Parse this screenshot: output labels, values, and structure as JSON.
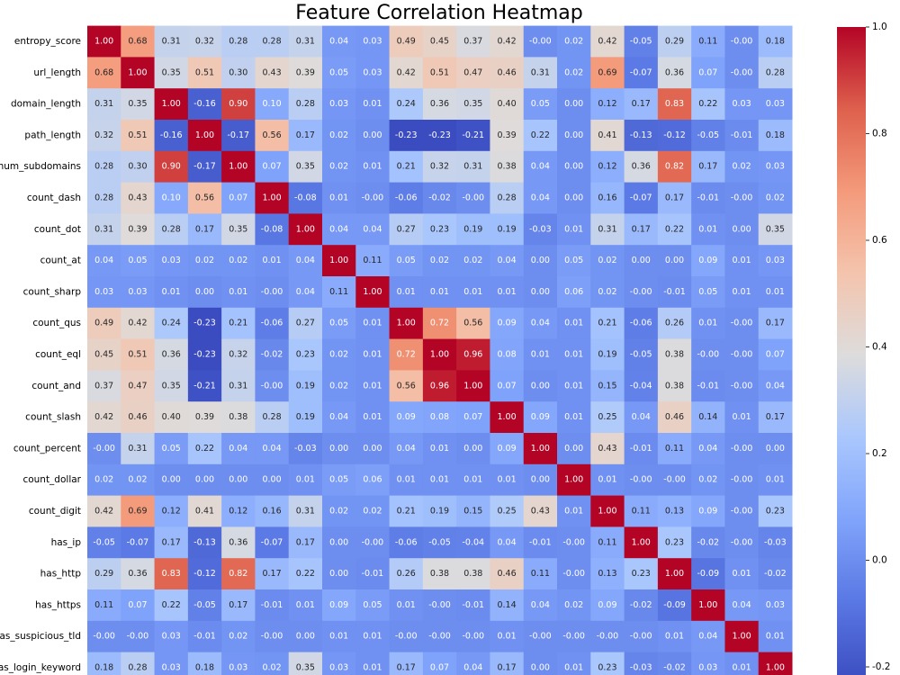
{
  "chart_data": {
    "type": "heatmap",
    "title": "Feature Correlation Heatmap",
    "colormap": "coolwarm",
    "rows": [
      "entropy_score",
      "url_length",
      "domain_length",
      "path_length",
      "num_subdomains",
      "count_dash",
      "count_dot",
      "count_at",
      "count_sharp",
      "count_qus",
      "count_eql",
      "count_and",
      "count_slash",
      "count_percent",
      "count_dollar",
      "count_digit",
      "has_ip",
      "has_http",
      "has_https",
      "has_suspicious_tld",
      "has_login_keyword"
    ],
    "values": [
      [
        1.0,
        0.68,
        0.31,
        0.32,
        0.28,
        0.28,
        0.31,
        0.04,
        0.03,
        0.49,
        0.45,
        0.37,
        0.42,
        0,
        0.02,
        0.42,
        -0.05,
        0.29,
        0.11,
        0,
        0.18
      ],
      [
        0.68,
        1.0,
        0.35,
        0.51,
        0.3,
        0.43,
        0.39,
        0.05,
        0.03,
        0.42,
        0.51,
        0.47,
        0.46,
        0.31,
        0.02,
        0.69,
        -0.07,
        0.36,
        0.07,
        0,
        0.28
      ],
      [
        0.31,
        0.35,
        1.0,
        -0.16,
        0.9,
        0.1,
        0.28,
        0.03,
        0.01,
        0.24,
        0.36,
        0.35,
        0.4,
        0.05,
        0.0,
        0.12,
        0.17,
        0.83,
        0.22,
        0.03,
        0.03
      ],
      [
        0.32,
        0.51,
        -0.16,
        1.0,
        -0.17,
        0.56,
        0.17,
        0.02,
        0.0,
        -0.23,
        -0.23,
        -0.21,
        0.39,
        0.22,
        0.0,
        0.41,
        -0.13,
        -0.12,
        -0.05,
        -0.01,
        0.18
      ],
      [
        0.28,
        0.3,
        0.9,
        -0.17,
        1.0,
        0.07,
        0.35,
        0.02,
        0.01,
        0.21,
        0.32,
        0.31,
        0.38,
        0.04,
        0.0,
        0.12,
        0.36,
        0.82,
        0.17,
        0.02,
        0.03
      ],
      [
        0.28,
        0.43,
        0.1,
        0.56,
        0.07,
        1.0,
        -0.08,
        0.01,
        0,
        -0.06,
        -0.02,
        0,
        0.28,
        0.04,
        0.0,
        0.16,
        -0.07,
        0.17,
        -0.01,
        0,
        0.02
      ],
      [
        0.31,
        0.39,
        0.28,
        0.17,
        0.35,
        -0.08,
        1.0,
        0.04,
        0.04,
        0.27,
        0.23,
        0.19,
        0.19,
        -0.03,
        0.01,
        0.31,
        0.17,
        0.22,
        0.01,
        0.0,
        0.35
      ],
      [
        0.04,
        0.05,
        0.03,
        0.02,
        0.02,
        0.01,
        0.04,
        1.0,
        0.11,
        0.05,
        0.02,
        0.02,
        0.04,
        0.0,
        0.05,
        0.02,
        0.0,
        0.0,
        0.09,
        0.01,
        0.03
      ],
      [
        0.03,
        0.03,
        0.01,
        0.0,
        0.01,
        0,
        0.04,
        0.11,
        1.0,
        0.01,
        0.01,
        0.01,
        0.01,
        0.0,
        0.06,
        0.02,
        0,
        -0.01,
        0.05,
        0.01,
        0.01
      ],
      [
        0.49,
        0.42,
        0.24,
        -0.23,
        0.21,
        -0.06,
        0.27,
        0.05,
        0.01,
        1.0,
        0.72,
        0.56,
        0.09,
        0.04,
        0.01,
        0.21,
        -0.06,
        0.26,
        0.01,
        0,
        0.17
      ],
      [
        0.45,
        0.51,
        0.36,
        -0.23,
        0.32,
        -0.02,
        0.23,
        0.02,
        0.01,
        0.72,
        1.0,
        0.96,
        0.08,
        0.01,
        0.01,
        0.19,
        -0.05,
        0.38,
        0,
        0,
        0.07
      ],
      [
        0.37,
        0.47,
        0.35,
        -0.21,
        0.31,
        0,
        0.19,
        0.02,
        0.01,
        0.56,
        0.96,
        1.0,
        0.07,
        0.0,
        0.01,
        0.15,
        -0.04,
        0.38,
        -0.01,
        0,
        0.04
      ],
      [
        0.42,
        0.46,
        0.4,
        0.39,
        0.38,
        0.28,
        0.19,
        0.04,
        0.01,
        0.09,
        0.08,
        0.07,
        1.0,
        0.09,
        0.01,
        0.25,
        0.04,
        0.46,
        0.14,
        0.01,
        0.17
      ],
      [
        0,
        0.31,
        0.05,
        0.22,
        0.04,
        0.04,
        -0.03,
        0.0,
        0.0,
        0.04,
        0.01,
        0.0,
        0.09,
        1.0,
        0.0,
        0.43,
        -0.01,
        0.11,
        0.04,
        0,
        0.0
      ],
      [
        0.02,
        0.02,
        0.0,
        0.0,
        0.0,
        0.0,
        0.01,
        0.05,
        0.06,
        0.01,
        0.01,
        0.01,
        0.01,
        0.0,
        1.0,
        0.01,
        0,
        0,
        0.02,
        0,
        0.01
      ],
      [
        0.42,
        0.69,
        0.12,
        0.41,
        0.12,
        0.16,
        0.31,
        0.02,
        0.02,
        0.21,
        0.19,
        0.15,
        0.25,
        0.43,
        0.01,
        1.0,
        0.11,
        0.13,
        0.09,
        0,
        0.23
      ],
      [
        -0.05,
        -0.07,
        0.17,
        -0.13,
        0.36,
        -0.07,
        0.17,
        0.0,
        0,
        -0.06,
        -0.05,
        -0.04,
        0.04,
        -0.01,
        0,
        0.11,
        1.0,
        0.23,
        -0.02,
        0,
        -0.03
      ],
      [
        0.29,
        0.36,
        0.83,
        -0.12,
        0.82,
        0.17,
        0.22,
        0.0,
        -0.01,
        0.26,
        0.38,
        0.38,
        0.46,
        0.11,
        0,
        0.13,
        0.23,
        1.0,
        -0.09,
        0.01,
        -0.02
      ],
      [
        0.11,
        0.07,
        0.22,
        -0.05,
        0.17,
        -0.01,
        0.01,
        0.09,
        0.05,
        0.01,
        0,
        -0.01,
        0.14,
        0.04,
        0.02,
        0.09,
        -0.02,
        -0.09,
        1.0,
        0.04,
        0.03
      ],
      [
        0,
        0,
        0.03,
        -0.01,
        0.02,
        0,
        0.0,
        0.01,
        0.01,
        0,
        0,
        0,
        0.01,
        0,
        0,
        0,
        0,
        0.01,
        0.04,
        1.0,
        0.01
      ],
      [
        0.18,
        0.28,
        0.03,
        0.18,
        0.03,
        0.02,
        0.35,
        0.03,
        0.01,
        0.17,
        0.07,
        0.04,
        0.17,
        0.0,
        0.01,
        0.23,
        -0.03,
        -0.02,
        0.03,
        0.01,
        1.0
      ]
    ],
    "value_labels": [
      [
        "1.00",
        "0.68",
        "0.31",
        "0.32",
        "0.28",
        "0.28",
        "0.31",
        "0.04",
        "0.03",
        "0.49",
        "0.45",
        "0.37",
        "0.42",
        "-0.00",
        "0.02",
        "0.42",
        "-0.05",
        "0.29",
        "0.11",
        "-0.00",
        "0.18"
      ],
      [
        "0.68",
        "1.00",
        "0.35",
        "0.51",
        "0.30",
        "0.43",
        "0.39",
        "0.05",
        "0.03",
        "0.42",
        "0.51",
        "0.47",
        "0.46",
        "0.31",
        "0.02",
        "0.69",
        "-0.07",
        "0.36",
        "0.07",
        "-0.00",
        "0.28"
      ],
      [
        "0.31",
        "0.35",
        "1.00",
        "-0.16",
        "0.90",
        "0.10",
        "0.28",
        "0.03",
        "0.01",
        "0.24",
        "0.36",
        "0.35",
        "0.40",
        "0.05",
        "0.00",
        "0.12",
        "0.17",
        "0.83",
        "0.22",
        "0.03",
        "0.03"
      ],
      [
        "0.32",
        "0.51",
        "-0.16",
        "1.00",
        "-0.17",
        "0.56",
        "0.17",
        "0.02",
        "0.00",
        "-0.23",
        "-0.23",
        "-0.21",
        "0.39",
        "0.22",
        "0.00",
        "0.41",
        "-0.13",
        "-0.12",
        "-0.05",
        "-0.01",
        "0.18"
      ],
      [
        "0.28",
        "0.30",
        "0.90",
        "-0.17",
        "1.00",
        "0.07",
        "0.35",
        "0.02",
        "0.01",
        "0.21",
        "0.32",
        "0.31",
        "0.38",
        "0.04",
        "0.00",
        "0.12",
        "0.36",
        "0.82",
        "0.17",
        "0.02",
        "0.03"
      ],
      [
        "0.28",
        "0.43",
        "0.10",
        "0.56",
        "0.07",
        "1.00",
        "-0.08",
        "0.01",
        "-0.00",
        "-0.06",
        "-0.02",
        "-0.00",
        "0.28",
        "0.04",
        "0.00",
        "0.16",
        "-0.07",
        "0.17",
        "-0.01",
        "-0.00",
        "0.02"
      ],
      [
        "0.31",
        "0.39",
        "0.28",
        "0.17",
        "0.35",
        "-0.08",
        "1.00",
        "0.04",
        "0.04",
        "0.27",
        "0.23",
        "0.19",
        "0.19",
        "-0.03",
        "0.01",
        "0.31",
        "0.17",
        "0.22",
        "0.01",
        "0.00",
        "0.35"
      ],
      [
        "0.04",
        "0.05",
        "0.03",
        "0.02",
        "0.02",
        "0.01",
        "0.04",
        "1.00",
        "0.11",
        "0.05",
        "0.02",
        "0.02",
        "0.04",
        "0.00",
        "0.05",
        "0.02",
        "0.00",
        "0.00",
        "0.09",
        "0.01",
        "0.03"
      ],
      [
        "0.03",
        "0.03",
        "0.01",
        "0.00",
        "0.01",
        "-0.00",
        "0.04",
        "0.11",
        "1.00",
        "0.01",
        "0.01",
        "0.01",
        "0.01",
        "0.00",
        "0.06",
        "0.02",
        "-0.00",
        "-0.01",
        "0.05",
        "0.01",
        "0.01"
      ],
      [
        "0.49",
        "0.42",
        "0.24",
        "-0.23",
        "0.21",
        "-0.06",
        "0.27",
        "0.05",
        "0.01",
        "1.00",
        "0.72",
        "0.56",
        "0.09",
        "0.04",
        "0.01",
        "0.21",
        "-0.06",
        "0.26",
        "0.01",
        "-0.00",
        "0.17"
      ],
      [
        "0.45",
        "0.51",
        "0.36",
        "-0.23",
        "0.32",
        "-0.02",
        "0.23",
        "0.02",
        "0.01",
        "0.72",
        "1.00",
        "0.96",
        "0.08",
        "0.01",
        "0.01",
        "0.19",
        "-0.05",
        "0.38",
        "-0.00",
        "-0.00",
        "0.07"
      ],
      [
        "0.37",
        "0.47",
        "0.35",
        "-0.21",
        "0.31",
        "-0.00",
        "0.19",
        "0.02",
        "0.01",
        "0.56",
        "0.96",
        "1.00",
        "0.07",
        "0.00",
        "0.01",
        "0.15",
        "-0.04",
        "0.38",
        "-0.01",
        "-0.00",
        "0.04"
      ],
      [
        "0.42",
        "0.46",
        "0.40",
        "0.39",
        "0.38",
        "0.28",
        "0.19",
        "0.04",
        "0.01",
        "0.09",
        "0.08",
        "0.07",
        "1.00",
        "0.09",
        "0.01",
        "0.25",
        "0.04",
        "0.46",
        "0.14",
        "0.01",
        "0.17"
      ],
      [
        "-0.00",
        "0.31",
        "0.05",
        "0.22",
        "0.04",
        "0.04",
        "-0.03",
        "0.00",
        "0.00",
        "0.04",
        "0.01",
        "0.00",
        "0.09",
        "1.00",
        "0.00",
        "0.43",
        "-0.01",
        "0.11",
        "0.04",
        "-0.00",
        "0.00"
      ],
      [
        "0.02",
        "0.02",
        "0.00",
        "0.00",
        "0.00",
        "0.00",
        "0.01",
        "0.05",
        "0.06",
        "0.01",
        "0.01",
        "0.01",
        "0.01",
        "0.00",
        "1.00",
        "0.01",
        "-0.00",
        "-0.00",
        "0.02",
        "-0.00",
        "0.01"
      ],
      [
        "0.42",
        "0.69",
        "0.12",
        "0.41",
        "0.12",
        "0.16",
        "0.31",
        "0.02",
        "0.02",
        "0.21",
        "0.19",
        "0.15",
        "0.25",
        "0.43",
        "0.01",
        "1.00",
        "0.11",
        "0.13",
        "0.09",
        "-0.00",
        "0.23"
      ],
      [
        "-0.05",
        "-0.07",
        "0.17",
        "-0.13",
        "0.36",
        "-0.07",
        "0.17",
        "0.00",
        "-0.00",
        "-0.06",
        "-0.05",
        "-0.04",
        "0.04",
        "-0.01",
        "-0.00",
        "0.11",
        "1.00",
        "0.23",
        "-0.02",
        "-0.00",
        "-0.03"
      ],
      [
        "0.29",
        "0.36",
        "0.83",
        "-0.12",
        "0.82",
        "0.17",
        "0.22",
        "0.00",
        "-0.01",
        "0.26",
        "0.38",
        "0.38",
        "0.46",
        "0.11",
        "-0.00",
        "0.13",
        "0.23",
        "1.00",
        "-0.09",
        "0.01",
        "-0.02"
      ],
      [
        "0.11",
        "0.07",
        "0.22",
        "-0.05",
        "0.17",
        "-0.01",
        "0.01",
        "0.09",
        "0.05",
        "0.01",
        "-0.00",
        "-0.01",
        "0.14",
        "0.04",
        "0.02",
        "0.09",
        "-0.02",
        "-0.09",
        "1.00",
        "0.04",
        "0.03"
      ],
      [
        "-0.00",
        "-0.00",
        "0.03",
        "-0.01",
        "0.02",
        "-0.00",
        "0.00",
        "0.01",
        "0.01",
        "-0.00",
        "-0.00",
        "-0.00",
        "0.01",
        "-0.00",
        "-0.00",
        "-0.00",
        "-0.00",
        "0.01",
        "0.04",
        "1.00",
        "0.01"
      ],
      [
        "0.18",
        "0.28",
        "0.03",
        "0.18",
        "0.03",
        "0.02",
        "0.35",
        "0.03",
        "0.01",
        "0.17",
        "0.07",
        "0.04",
        "0.17",
        "0.00",
        "0.01",
        "0.23",
        "-0.03",
        "-0.02",
        "0.03",
        "0.01",
        "1.00"
      ]
    ],
    "clim": [
      -0.23,
      1.0
    ],
    "cticks": [
      -0.2,
      {
        "value": 0,
        "label": "0.0"
      },
      0.2,
      0.4,
      0.6,
      0.8,
      {
        "value": 1,
        "label": "1.0"
      }
    ]
  }
}
